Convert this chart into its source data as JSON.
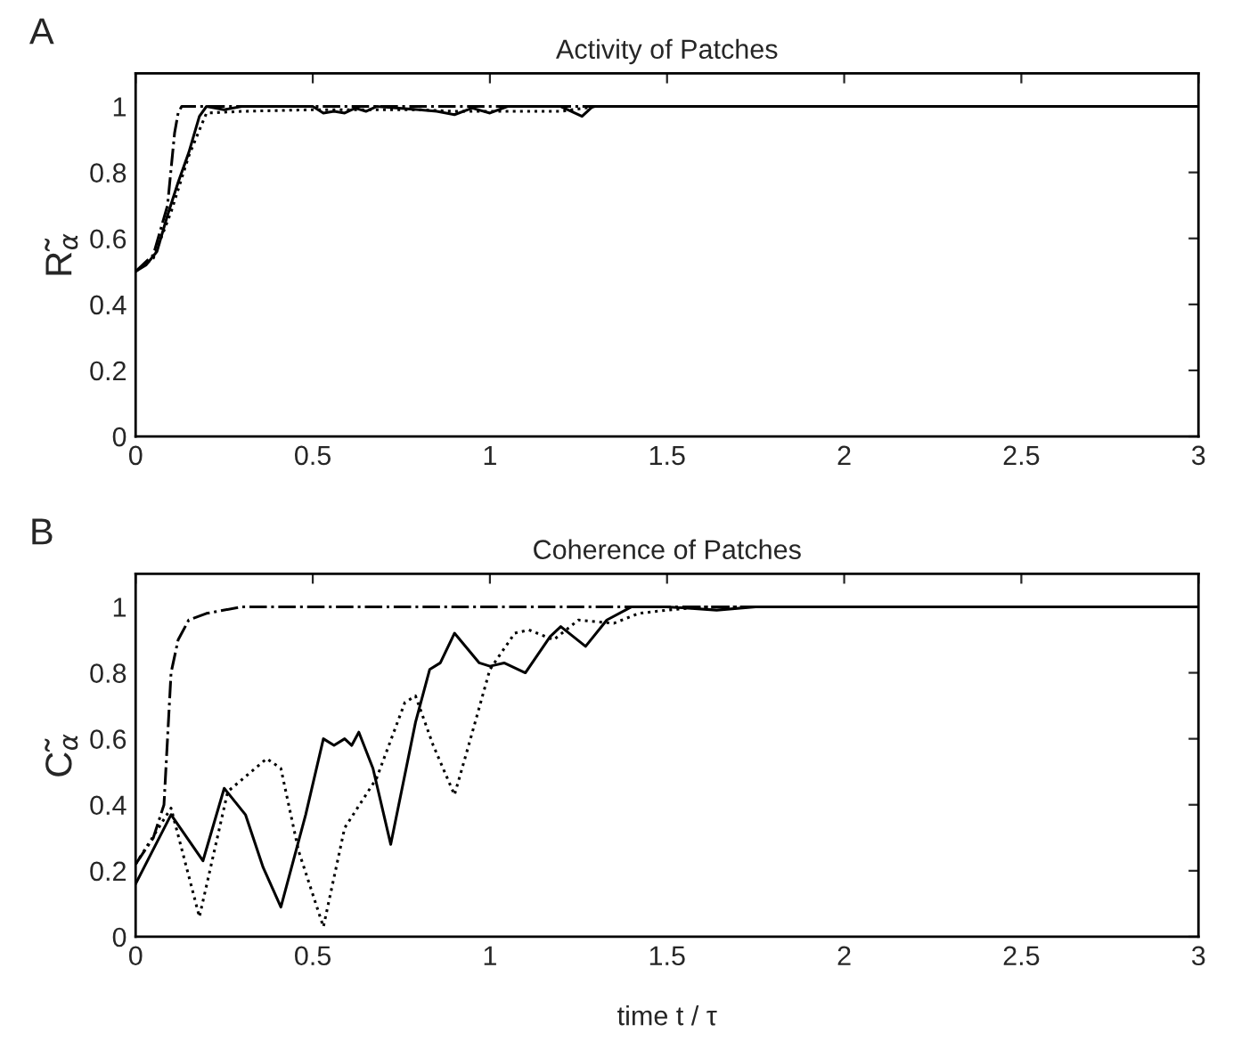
{
  "chart_data": [
    {
      "type": "line",
      "title": "Activity of Patches",
      "ylabel": "R̃$_{α}$",
      "annotations": [
        "A"
      ],
      "xlim": [
        0,
        3
      ],
      "ylim": [
        0,
        1.1
      ],
      "xticks": [
        0,
        0.5,
        1,
        1.5,
        2,
        2.5,
        3
      ],
      "yticks": [
        0,
        0.2,
        0.4,
        0.6,
        0.8,
        1
      ],
      "grid": false,
      "series": [
        {
          "color": "#000000",
          "line_style": "solid",
          "x": [
            0,
            0.03,
            0.06,
            0.09,
            0.12,
            0.15,
            0.18,
            0.2,
            0.25,
            0.3,
            0.5,
            0.53,
            0.56,
            0.59,
            0.62,
            0.65,
            0.68,
            0.8,
            0.85,
            0.9,
            0.95,
            1.0,
            1.05,
            1.2,
            1.26,
            1.29,
            3
          ],
          "values": [
            0.5,
            0.52,
            0.56,
            0.67,
            0.77,
            0.86,
            0.97,
            1.0,
            0.99,
            1.0,
            1.0,
            0.98,
            0.985,
            0.98,
            0.995,
            0.985,
            1.0,
            0.99,
            0.985,
            0.975,
            0.995,
            0.98,
            1.0,
            1.0,
            0.97,
            1.0,
            1.0
          ]
        },
        {
          "color": "#000000",
          "line_style": "dotted",
          "x": [
            0,
            0.05,
            0.1,
            0.15,
            0.2,
            0.3,
            0.5,
            0.8,
            0.9,
            1.2,
            1.3,
            3
          ],
          "values": [
            0.5,
            0.54,
            0.68,
            0.85,
            0.98,
            0.985,
            0.99,
            0.99,
            0.985,
            0.985,
            1.0,
            1.0
          ]
        },
        {
          "color": "#000000",
          "line_style": "dashdot",
          "x": [
            0,
            0.05,
            0.09,
            0.11,
            0.12,
            0.13,
            3
          ],
          "values": [
            0.5,
            0.55,
            0.7,
            0.92,
            0.98,
            1.0,
            1.0
          ]
        }
      ]
    },
    {
      "type": "line",
      "title": "Coherence of Patches",
      "xlabel": "time t / τ",
      "ylabel": "C̃$_{α}$",
      "annotations": [
        "B"
      ],
      "xlim": [
        0,
        3
      ],
      "ylim": [
        0,
        1.1
      ],
      "xticks": [
        0,
        0.5,
        1,
        1.5,
        2,
        2.5,
        3
      ],
      "yticks": [
        0,
        0.2,
        0.4,
        0.6,
        0.8,
        1
      ],
      "grid": false,
      "series": [
        {
          "color": "#000000",
          "line_style": "solid",
          "x": [
            0,
            0.1,
            0.19,
            0.25,
            0.31,
            0.36,
            0.41,
            0.48,
            0.53,
            0.56,
            0.59,
            0.61,
            0.63,
            0.67,
            0.72,
            0.79,
            0.83,
            0.86,
            0.9,
            0.97,
            1.0,
            1.04,
            1.1,
            1.17,
            1.2,
            1.27,
            1.33,
            1.4,
            1.5,
            1.64,
            1.75,
            3
          ],
          "values": [
            0.16,
            0.37,
            0.23,
            0.45,
            0.37,
            0.21,
            0.09,
            0.37,
            0.6,
            0.58,
            0.6,
            0.58,
            0.62,
            0.51,
            0.28,
            0.65,
            0.81,
            0.83,
            0.92,
            0.83,
            0.82,
            0.83,
            0.8,
            0.91,
            0.94,
            0.88,
            0.96,
            1.0,
            1.0,
            0.99,
            1.0,
            1.0
          ]
        },
        {
          "color": "#000000",
          "line_style": "dotted",
          "x": [
            0,
            0.1,
            0.18,
            0.26,
            0.37,
            0.41,
            0.46,
            0.53,
            0.59,
            0.68,
            0.76,
            0.79,
            0.84,
            0.9,
            0.94,
            1.0,
            1.07,
            1.11,
            1.18,
            1.25,
            1.35,
            1.42,
            1.5,
            1.6,
            3
          ],
          "values": [
            0.22,
            0.39,
            0.06,
            0.44,
            0.54,
            0.51,
            0.26,
            0.03,
            0.33,
            0.48,
            0.71,
            0.73,
            0.58,
            0.43,
            0.58,
            0.81,
            0.92,
            0.93,
            0.9,
            0.96,
            0.95,
            0.98,
            0.99,
            1.0,
            1.0
          ]
        },
        {
          "color": "#000000",
          "line_style": "dashdot",
          "x": [
            0,
            0.05,
            0.08,
            0.1,
            0.12,
            0.15,
            0.2,
            0.3,
            3
          ],
          "values": [
            0.22,
            0.3,
            0.4,
            0.8,
            0.9,
            0.96,
            0.98,
            1.0,
            1.0
          ]
        }
      ]
    }
  ]
}
